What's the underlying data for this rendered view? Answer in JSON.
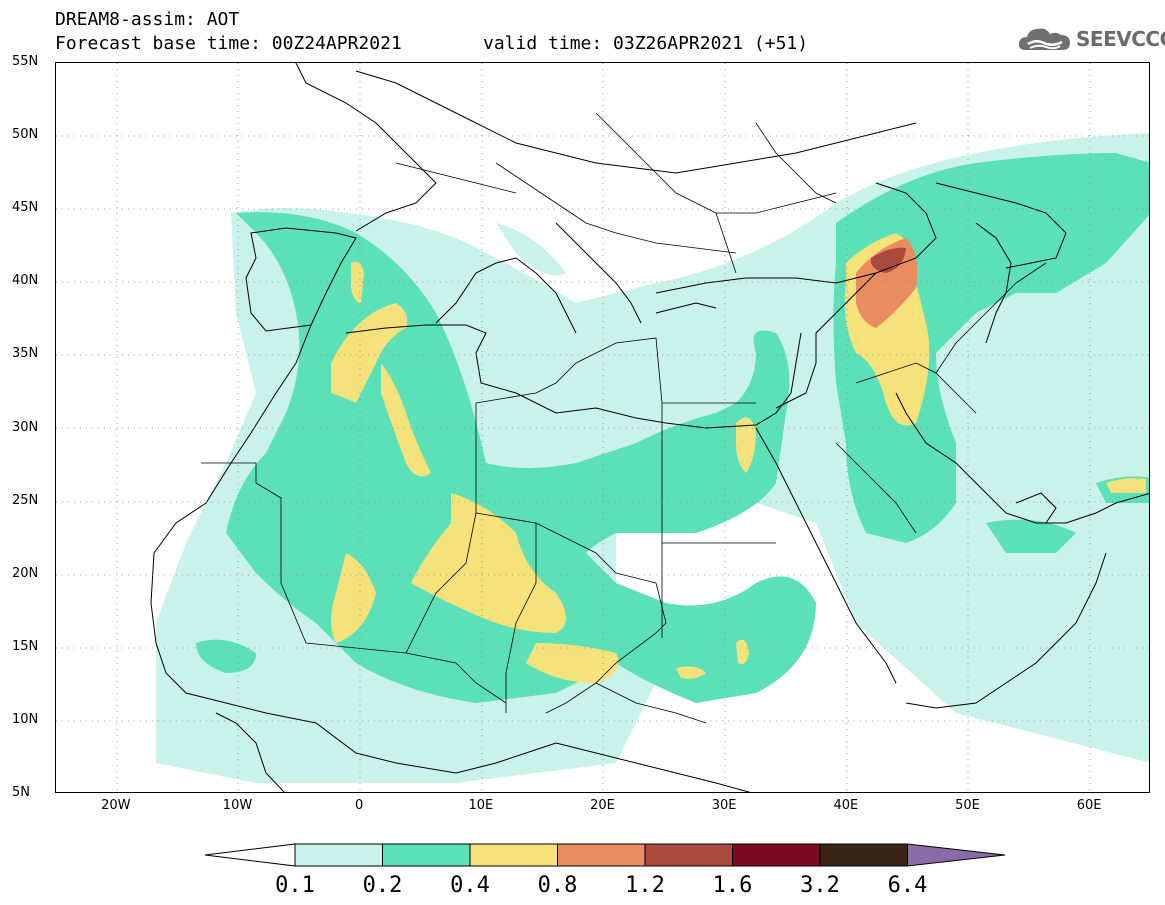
{
  "header": {
    "title": "DREAM8-assim: AOT",
    "base_time": "Forecast base time: 00Z24APR2021",
    "valid_time": "valid time: 03Z26APR2021 (+51)",
    "logo": "SEEVCCC"
  },
  "map": {
    "lon_range": [
      -25,
      65
    ],
    "lat_range": [
      5,
      55
    ],
    "x_ticks": [
      {
        "lon": -20,
        "label": "20W"
      },
      {
        "lon": -10,
        "label": "10W"
      },
      {
        "lon": 0,
        "label": "0"
      },
      {
        "lon": 10,
        "label": "10E"
      },
      {
        "lon": 20,
        "label": "20E"
      },
      {
        "lon": 30,
        "label": "30E"
      },
      {
        "lon": 40,
        "label": "40E"
      },
      {
        "lon": 50,
        "label": "50E"
      },
      {
        "lon": 60,
        "label": "60E"
      }
    ],
    "y_ticks": [
      {
        "lat": 55,
        "label": "55N"
      },
      {
        "lat": 50,
        "label": "50N"
      },
      {
        "lat": 45,
        "label": "45N"
      },
      {
        "lat": 40,
        "label": "40N"
      },
      {
        "lat": 35,
        "label": "35N"
      },
      {
        "lat": 30,
        "label": "30N"
      },
      {
        "lat": 25,
        "label": "25N"
      },
      {
        "lat": 20,
        "label": "20N"
      },
      {
        "lat": 15,
        "label": "15N"
      },
      {
        "lat": 10,
        "label": "10N"
      },
      {
        "lat": 5,
        "label": "5N"
      }
    ],
    "grid": true,
    "grid_style": "dotted"
  },
  "legend": {
    "labels": [
      "0.1",
      "0.2",
      "0.4",
      "0.8",
      "1.2",
      "1.6",
      "3.2",
      "6.4"
    ],
    "colors": [
      "#c9f2ea",
      "#5ce0b8",
      "#f5e27a",
      "#e98c60",
      "#a94a3c",
      "#7a0a22",
      "#3a2514",
      "#8a6aa8"
    ]
  }
}
